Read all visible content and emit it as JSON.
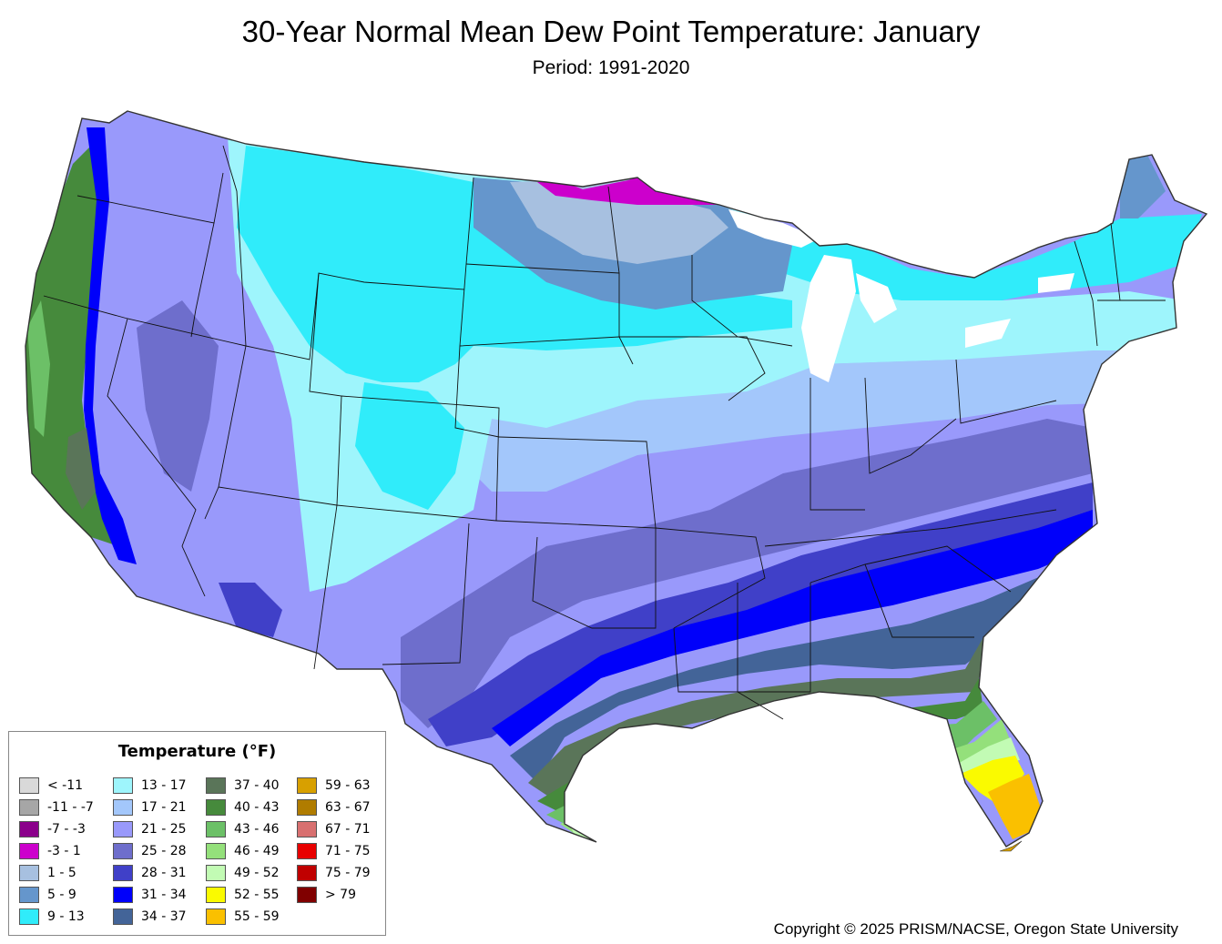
{
  "title": "30-Year Normal Mean Dew Point Temperature: January",
  "subtitle": "Period: 1991-2020",
  "legend": {
    "title": "Temperature (°F)",
    "items": [
      {
        "label": "< -11",
        "color": "#d9d9d9"
      },
      {
        "label": "-11 - -7",
        "color": "#a6a6a6"
      },
      {
        "label": "-7 - -3",
        "color": "#8b008b"
      },
      {
        "label": "-3 - 1",
        "color": "#cc00cc"
      },
      {
        "label": "1 - 5",
        "color": "#a7c0e0"
      },
      {
        "label": "5 - 9",
        "color": "#6596cc"
      },
      {
        "label": "9 - 13",
        "color": "#30ecfa"
      },
      {
        "label": "13 - 17",
        "color": "#9ef5fc"
      },
      {
        "label": "17 - 21",
        "color": "#a3c7fb"
      },
      {
        "label": "21 - 25",
        "color": "#9999fb"
      },
      {
        "label": "25 - 28",
        "color": "#6e6ecc"
      },
      {
        "label": "28 - 31",
        "color": "#4040c8"
      },
      {
        "label": "31 - 34",
        "color": "#0000fa"
      },
      {
        "label": "34 - 37",
        "color": "#436498"
      },
      {
        "label": "37 - 40",
        "color": "#5a7559"
      },
      {
        "label": "40 - 43",
        "color": "#468a3c"
      },
      {
        "label": "43 - 46",
        "color": "#6cc067"
      },
      {
        "label": "46 - 49",
        "color": "#94e07b"
      },
      {
        "label": "49 - 52",
        "color": "#c2fbb4"
      },
      {
        "label": "52 - 55",
        "color": "#fafa00"
      },
      {
        "label": "55 - 59",
        "color": "#fac000"
      },
      {
        "label": "59 - 63",
        "color": "#d8a000"
      },
      {
        "label": "63 - 67",
        "color": "#b07c00"
      },
      {
        "label": "67 - 71",
        "color": "#d87070"
      },
      {
        "label": "71 - 75",
        "color": "#e80000"
      },
      {
        "label": "75 - 79",
        "color": "#c00000"
      },
      {
        "label": "> 79",
        "color": "#800000"
      }
    ]
  },
  "copyright": "Copyright © 2025 PRISM/NACSE, Oregon State University"
}
